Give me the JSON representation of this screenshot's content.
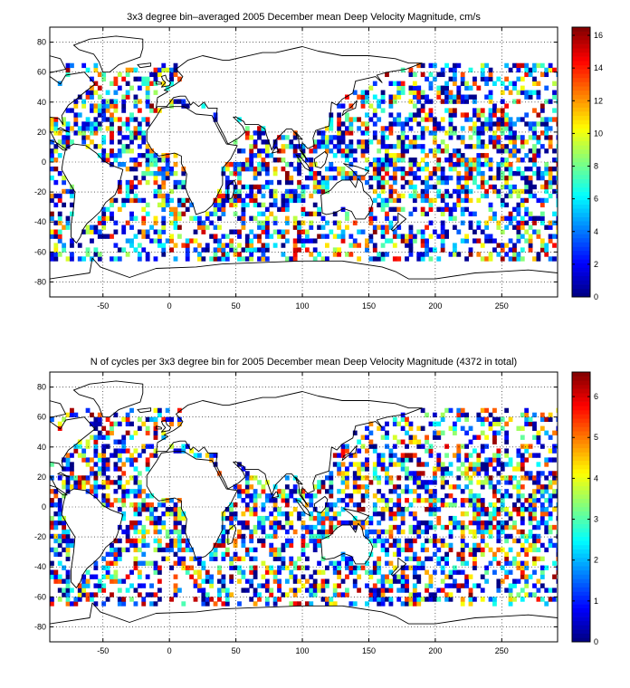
{
  "chart_data": [
    {
      "type": "heatmap",
      "title": "3x3 degree bin–averaged 2005 December mean Deep Velocity Magnitude, cm/s",
      "xlabel": "",
      "ylabel": "",
      "xlim": [
        -90,
        292
      ],
      "ylim": [
        -90,
        90
      ],
      "x_ticks": [
        -50,
        0,
        50,
        100,
        150,
        200,
        250
      ],
      "y_ticks": [
        -80,
        -60,
        -40,
        -20,
        0,
        20,
        40,
        60,
        80
      ],
      "grid": true,
      "bin_size_deg": 3,
      "colormap": "jet",
      "colorbar": {
        "min": 0,
        "max": 16.5,
        "ticks": [
          0,
          2,
          4,
          6,
          8,
          10,
          12,
          14,
          16
        ]
      },
      "seed": 11
    },
    {
      "type": "heatmap",
      "title": "N of cycles per 3x3 degree bin for 2005 December mean Deep Velocity Magnitude (4372 in total)",
      "xlabel": "",
      "ylabel": "",
      "xlim": [
        -90,
        292
      ],
      "ylim": [
        -90,
        90
      ],
      "x_ticks": [
        -50,
        0,
        50,
        100,
        150,
        200,
        250
      ],
      "y_ticks": [
        -80,
        -60,
        -40,
        -20,
        0,
        20,
        40,
        60,
        80
      ],
      "grid": true,
      "bin_size_deg": 3,
      "colormap": "jet",
      "colorbar": {
        "min": 0,
        "max": 6.6,
        "ticks": [
          0,
          1,
          2,
          3,
          4,
          5,
          6
        ]
      },
      "seed": 29
    }
  ]
}
